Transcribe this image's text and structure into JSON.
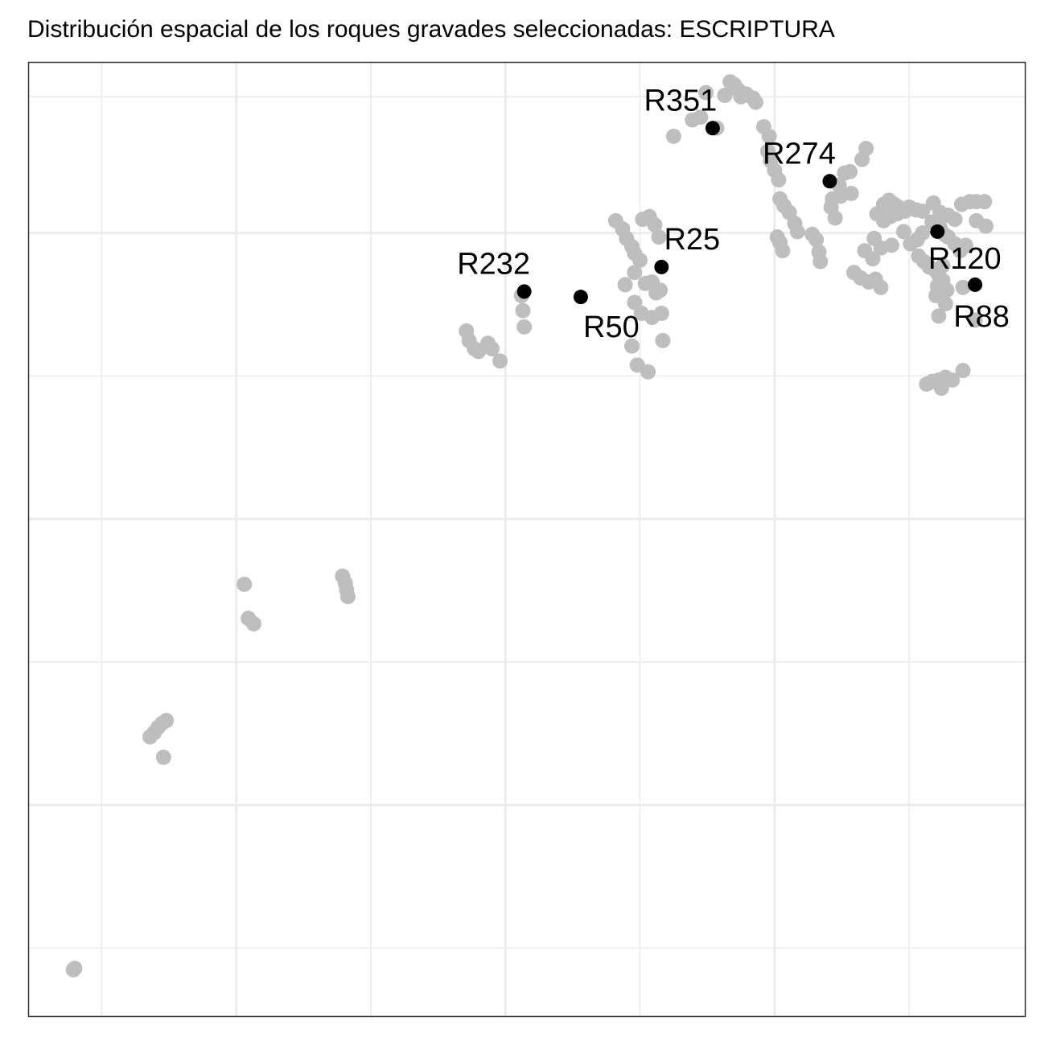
{
  "chart_data": {
    "type": "scatter",
    "title": "Distribución espacial de los roques gravades seleccionadas:  ESCRIPTURA",
    "subtitle": "",
    "xlabel": "",
    "ylabel": "",
    "xlim": [
      0,
      74
    ],
    "ylim": [
      0,
      70
    ],
    "grid": true,
    "legend": "none",
    "colors": {
      "background_points": "#bebebe",
      "highlight_points": "#000000",
      "grid": "#ebebeb",
      "border": "#333333"
    },
    "background_points": [
      [
        3.3,
        3.4
      ],
      [
        3.4,
        3.5
      ],
      [
        9.0,
        20.5
      ],
      [
        9.3,
        20.8
      ],
      [
        9.6,
        21.2
      ],
      [
        9.9,
        21.5
      ],
      [
        10.2,
        21.7
      ],
      [
        10.0,
        19.0
      ],
      [
        16.0,
        31.7
      ],
      [
        16.3,
        29.2
      ],
      [
        16.7,
        28.8
      ],
      [
        23.3,
        32.3
      ],
      [
        23.5,
        31.8
      ],
      [
        23.6,
        31.3
      ],
      [
        23.7,
        30.8
      ],
      [
        32.5,
        50.3
      ],
      [
        32.7,
        49.6
      ],
      [
        33.1,
        49.0
      ],
      [
        33.4,
        48.8
      ],
      [
        34.1,
        49.4
      ],
      [
        34.4,
        49.0
      ],
      [
        35.0,
        48.1
      ],
      [
        36.6,
        52.9
      ],
      [
        36.7,
        51.8
      ],
      [
        36.8,
        50.6
      ],
      [
        43.6,
        58.4
      ],
      [
        44.1,
        57.8
      ],
      [
        44.4,
        57.1
      ],
      [
        44.8,
        56.5
      ],
      [
        45.0,
        56.0
      ],
      [
        45.4,
        55.5
      ],
      [
        45.0,
        54.6
      ],
      [
        45.8,
        53.8
      ],
      [
        46.3,
        53.9
      ],
      [
        46.6,
        53.1
      ],
      [
        46.9,
        53.3
      ],
      [
        44.3,
        53.7
      ],
      [
        45.0,
        52.4
      ],
      [
        45.5,
        51.6
      ],
      [
        46.3,
        51.3
      ],
      [
        47.0,
        51.6
      ],
      [
        45.6,
        58.5
      ],
      [
        46.1,
        58.7
      ],
      [
        46.5,
        58.1
      ],
      [
        46.8,
        57.2
      ],
      [
        44.8,
        49.2
      ],
      [
        45.2,
        47.8
      ],
      [
        47.1,
        49.6
      ],
      [
        46.0,
        47.3
      ],
      [
        47.9,
        64.6
      ],
      [
        49.3,
        65.8
      ],
      [
        49.9,
        66.0
      ],
      [
        51.1,
        65.2
      ],
      [
        50.3,
        67.8
      ],
      [
        51.7,
        67.6
      ],
      [
        52.1,
        68.6
      ],
      [
        52.4,
        68.4
      ],
      [
        52.7,
        68.0
      ],
      [
        52.9,
        67.5
      ],
      [
        53.3,
        67.7
      ],
      [
        53.8,
        67.4
      ],
      [
        54.0,
        67.1
      ],
      [
        54.6,
        65.3
      ],
      [
        55.0,
        64.6
      ],
      [
        54.9,
        63.5
      ],
      [
        55.1,
        62.8
      ],
      [
        55.4,
        62.1
      ],
      [
        55.7,
        61.4
      ],
      [
        55.8,
        60.0
      ],
      [
        56.1,
        59.5
      ],
      [
        56.5,
        59.0
      ],
      [
        56.9,
        58.2
      ],
      [
        57.1,
        57.6
      ],
      [
        55.6,
        57.2
      ],
      [
        55.8,
        56.8
      ],
      [
        56.0,
        56.2
      ],
      [
        58.2,
        57.4
      ],
      [
        58.5,
        57.0
      ],
      [
        58.7,
        56.1
      ],
      [
        58.8,
        55.4
      ],
      [
        59.6,
        59.4
      ],
      [
        59.7,
        60.0
      ],
      [
        59.9,
        58.6
      ],
      [
        60.2,
        61.0
      ],
      [
        60.6,
        61.9
      ],
      [
        61.0,
        62.0
      ],
      [
        61.1,
        60.4
      ],
      [
        60.3,
        60.2
      ],
      [
        62.2,
        63.7
      ],
      [
        61.9,
        62.9
      ],
      [
        61.3,
        54.6
      ],
      [
        61.8,
        54.2
      ],
      [
        62.4,
        53.9
      ],
      [
        62.9,
        54.1
      ],
      [
        63.3,
        53.5
      ],
      [
        62.1,
        56.2
      ],
      [
        62.7,
        55.6
      ],
      [
        63.3,
        56.4
      ],
      [
        64.1,
        56.6
      ],
      [
        62.8,
        57.1
      ],
      [
        63.0,
        58.9
      ],
      [
        63.5,
        59.6
      ],
      [
        63.9,
        59.9
      ],
      [
        64.3,
        59.6
      ],
      [
        64.6,
        59.4
      ],
      [
        65.1,
        59.1
      ],
      [
        65.4,
        59.4
      ],
      [
        65.9,
        59.2
      ],
      [
        66.4,
        59.1
      ],
      [
        63.5,
        58.4
      ],
      [
        64.0,
        58.7
      ],
      [
        64.5,
        58.9
      ],
      [
        65.0,
        57.6
      ],
      [
        65.5,
        56.7
      ],
      [
        66.0,
        57.0
      ],
      [
        66.4,
        57.5
      ],
      [
        67.2,
        59.7
      ],
      [
        67.7,
        59.0
      ],
      [
        68.3,
        58.8
      ],
      [
        68.8,
        58.5
      ],
      [
        67.1,
        58.3
      ],
      [
        67.7,
        57.9
      ],
      [
        68.0,
        57.4
      ],
      [
        68.3,
        57.2
      ],
      [
        68.8,
        56.7
      ],
      [
        69.2,
        56.2
      ],
      [
        69.6,
        56.6
      ],
      [
        69.3,
        59.6
      ],
      [
        69.9,
        59.8
      ],
      [
        70.4,
        59.8
      ],
      [
        71.0,
        59.8
      ],
      [
        70.4,
        58.4
      ],
      [
        71.1,
        58.0
      ],
      [
        66.1,
        55.8
      ],
      [
        66.5,
        55.4
      ],
      [
        66.9,
        55.0
      ],
      [
        67.3,
        54.8
      ],
      [
        67.6,
        54.4
      ],
      [
        67.9,
        55.1
      ],
      [
        67.4,
        52.9
      ],
      [
        67.5,
        53.6
      ],
      [
        67.9,
        54.0
      ],
      [
        68.2,
        53.3
      ],
      [
        68.1,
        52.3
      ],
      [
        67.6,
        51.4
      ],
      [
        69.4,
        53.5
      ],
      [
        70.3,
        51.1
      ],
      [
        66.7,
        46.4
      ],
      [
        67.1,
        46.6
      ],
      [
        67.6,
        46.7
      ],
      [
        67.8,
        46.1
      ],
      [
        68.1,
        46.9
      ],
      [
        68.6,
        46.7
      ],
      [
        69.4,
        47.4
      ]
    ],
    "highlights": [
      {
        "label": "R351",
        "x": 50.8,
        "y": 65.2
      },
      {
        "label": "R274",
        "x": 59.5,
        "y": 61.3
      },
      {
        "label": "R25",
        "x": 47.0,
        "y": 55.0
      },
      {
        "label": "R232",
        "x": 36.8,
        "y": 53.2
      },
      {
        "label": "R50",
        "x": 41.0,
        "y": 52.8
      },
      {
        "label": "R120",
        "x": 67.5,
        "y": 57.6
      },
      {
        "label": "R88",
        "x": 70.3,
        "y": 53.7
      }
    ]
  }
}
